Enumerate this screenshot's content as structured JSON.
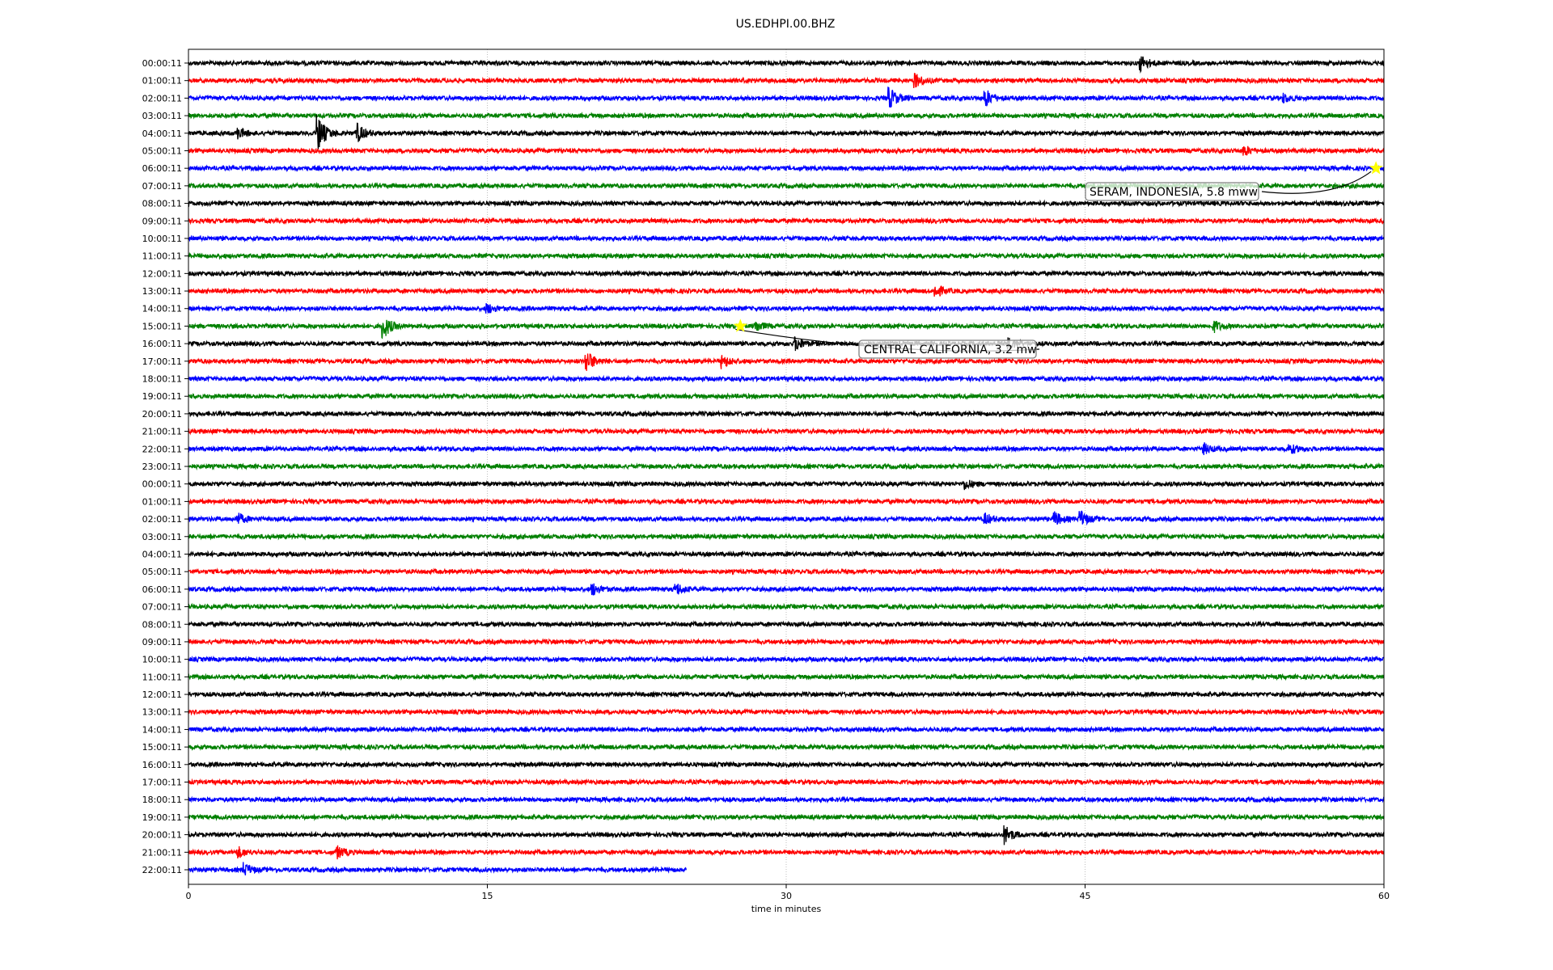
{
  "chart_data": {
    "type": "line",
    "title": "US.EDHPI.00.BHZ",
    "xlabel": "time in minutes",
    "ylabel": "",
    "xlim": [
      0,
      60
    ],
    "x_ticks": [
      "0",
      "15",
      "30",
      "45",
      "60"
    ],
    "grid": "vertical dotted at x ticks",
    "row_colors": [
      "#000000",
      "#ff0000",
      "#0000ff",
      "#008000"
    ],
    "row_labels": [
      "00:00:11",
      "01:00:11",
      "02:00:11",
      "03:00:11",
      "04:00:11",
      "05:00:11",
      "06:00:11",
      "07:00:11",
      "08:00:11",
      "09:00:11",
      "10:00:11",
      "11:00:11",
      "12:00:11",
      "13:00:11",
      "14:00:11",
      "15:00:11",
      "16:00:11",
      "17:00:11",
      "18:00:11",
      "19:00:11",
      "20:00:11",
      "21:00:11",
      "22:00:11",
      "23:00:11",
      "00:00:11",
      "01:00:11",
      "02:00:11",
      "03:00:11",
      "04:00:11",
      "05:00:11",
      "06:00:11",
      "07:00:11",
      "08:00:11",
      "09:00:11",
      "10:00:11",
      "11:00:11",
      "12:00:11",
      "13:00:11",
      "14:00:11",
      "15:00:11",
      "16:00:11",
      "17:00:11",
      "18:00:11",
      "19:00:11",
      "20:00:11",
      "21:00:11",
      "22:00:11"
    ],
    "last_row_end_minute": 25,
    "events": [
      {
        "row": 0,
        "minute": 47.8,
        "amp": 3
      },
      {
        "row": 1,
        "minute": 36.5,
        "amp": 2.5
      },
      {
        "row": 2,
        "minute": 35.2,
        "amp": 4
      },
      {
        "row": 2,
        "minute": 40,
        "amp": 3.5
      },
      {
        "row": 2,
        "minute": 55,
        "amp": 1.5
      },
      {
        "row": 4,
        "minute": 2.5,
        "amp": 2
      },
      {
        "row": 4,
        "minute": 6.5,
        "amp": 7
      },
      {
        "row": 4,
        "minute": 8.5,
        "amp": 3.5
      },
      {
        "row": 5,
        "minute": 53,
        "amp": 1.8
      },
      {
        "row": 13,
        "minute": 37.5,
        "amp": 2.5
      },
      {
        "row": 14,
        "minute": 15,
        "amp": 1.8
      },
      {
        "row": 15,
        "minute": 9.8,
        "amp": 4.5
      },
      {
        "row": 15,
        "minute": 28.5,
        "amp": 2
      },
      {
        "row": 15,
        "minute": 51.5,
        "amp": 2
      },
      {
        "row": 16,
        "minute": 30.5,
        "amp": 2.5
      },
      {
        "row": 16,
        "minute": 41.2,
        "amp": 2
      },
      {
        "row": 17,
        "minute": 20,
        "amp": 4
      },
      {
        "row": 17,
        "minute": 26.8,
        "amp": 2.5
      },
      {
        "row": 22,
        "minute": 51,
        "amp": 1.8
      },
      {
        "row": 22,
        "minute": 55.3,
        "amp": 1.8
      },
      {
        "row": 24,
        "minute": 39,
        "amp": 1.8
      },
      {
        "row": 26,
        "minute": 2.5,
        "amp": 2
      },
      {
        "row": 26,
        "minute": 40,
        "amp": 2
      },
      {
        "row": 26,
        "minute": 43.5,
        "amp": 2.5
      },
      {
        "row": 26,
        "minute": 44.8,
        "amp": 3
      },
      {
        "row": 30,
        "minute": 20.3,
        "amp": 2.2
      },
      {
        "row": 30,
        "minute": 24.5,
        "amp": 2.2
      },
      {
        "row": 44,
        "minute": 41,
        "amp": 3.5
      },
      {
        "row": 45,
        "minute": 2.5,
        "amp": 2
      },
      {
        "row": 45,
        "minute": 7.5,
        "amp": 2.2
      },
      {
        "row": 46,
        "minute": 2.8,
        "amp": 2.5
      }
    ],
    "annotations": [
      {
        "text": "SERAM, INDONESIA, 5.8 mww",
        "row": 6,
        "minute": 59.6,
        "marker": "star",
        "marker_color": "#ffff00"
      },
      {
        "text": "CENTRAL CALIFORNIA, 3.2 mw",
        "row": 15,
        "minute": 27.7,
        "marker": "star",
        "marker_color": "#ffff00"
      }
    ]
  }
}
